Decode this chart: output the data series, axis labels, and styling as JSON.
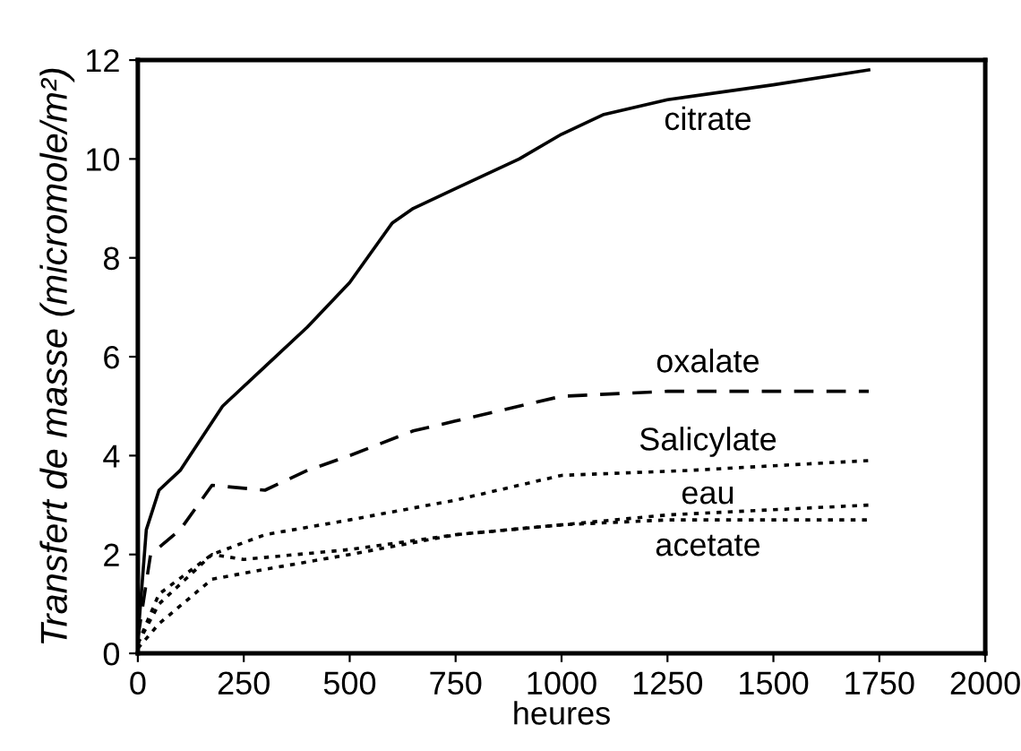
{
  "chart_data": {
    "type": "line",
    "xlabel": "heures",
    "ylabel": "Transfert de masse (micromole/m²)",
    "xlim": [
      0,
      2000
    ],
    "xticks": [
      0,
      250,
      500,
      750,
      1000,
      1250,
      1500,
      1750,
      2000
    ],
    "ylim": [
      0,
      12
    ],
    "yticks": [
      0,
      2,
      4,
      6,
      8,
      10,
      12
    ],
    "grid": false,
    "legend": false,
    "marker": "none",
    "series": [
      {
        "name": "citrate",
        "color": "#000000",
        "line_style": "solid",
        "x": [
          0,
          20,
          50,
          100,
          200,
          300,
          400,
          500,
          600,
          650,
          750,
          900,
          1000,
          1100,
          1250,
          1500,
          1725
        ],
        "values": [
          0.3,
          2.5,
          3.3,
          3.7,
          5.0,
          5.8,
          6.6,
          7.5,
          8.7,
          9.0,
          9.4,
          10.0,
          10.5,
          10.9,
          11.2,
          11.5,
          11.8
        ]
      },
      {
        "name": "oxalate",
        "color": "#000000",
        "line_style": "dashed",
        "x": [
          0,
          30,
          100,
          175,
          300,
          400,
          500,
          650,
          800,
          1000,
          1250,
          1725
        ],
        "values": [
          0.3,
          2.0,
          2.5,
          3.4,
          3.3,
          3.7,
          4.0,
          4.5,
          4.8,
          5.2,
          5.3,
          5.3
        ]
      },
      {
        "name": "Salicylate",
        "color": "#000000",
        "line_style": "dotted",
        "x": [
          0,
          50,
          175,
          300,
          500,
          750,
          1000,
          1300,
          1725
        ],
        "values": [
          0.2,
          1.2,
          2.0,
          2.4,
          2.7,
          3.1,
          3.6,
          3.7,
          3.9
        ]
      },
      {
        "name": "eau",
        "color": "#000000",
        "line_style": "dotted",
        "x": [
          0,
          50,
          175,
          300,
          500,
          750,
          1000,
          1250,
          1725
        ],
        "values": [
          0.1,
          0.6,
          1.5,
          1.7,
          2.0,
          2.4,
          2.6,
          2.8,
          3.0
        ]
      },
      {
        "name": "acetate",
        "color": "#000000",
        "line_style": "dotted",
        "x": [
          0,
          50,
          175,
          250,
          500,
          750,
          1000,
          1250,
          1725
        ],
        "values": [
          0.2,
          1.0,
          2.0,
          1.9,
          2.1,
          2.4,
          2.6,
          2.7,
          2.7
        ]
      }
    ]
  }
}
